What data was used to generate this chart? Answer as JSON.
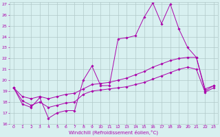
{
  "xlabel": "Windchill (Refroidissement éolien,°C)",
  "bg_color": "#d8f0f0",
  "line_color": "#aa00aa",
  "grid_color": "#b0c8c8",
  "xlim": [
    -0.5,
    23.5
  ],
  "ylim": [
    16,
    27.2
  ],
  "yticks": [
    16,
    17,
    18,
    19,
    20,
    21,
    22,
    23,
    24,
    25,
    26,
    27
  ],
  "xticks": [
    0,
    1,
    2,
    3,
    4,
    5,
    6,
    7,
    8,
    9,
    10,
    11,
    12,
    13,
    14,
    15,
    16,
    17,
    18,
    19,
    20,
    21,
    22,
    23
  ],
  "series": [
    {
      "x": [
        0,
        1,
        2,
        3,
        4,
        5,
        6,
        7,
        8,
        9,
        10,
        11,
        12,
        13,
        14,
        15,
        16,
        17,
        18,
        19,
        20,
        21,
        22,
        23
      ],
      "y": [
        19.3,
        17.8,
        17.5,
        18.4,
        16.5,
        17.0,
        17.2,
        17.2,
        20.0,
        21.3,
        19.5,
        19.5,
        23.8,
        23.9,
        24.1,
        25.8,
        27.1,
        25.2,
        27.0,
        24.7,
        23.0,
        22.1,
        19.0,
        19.5
      ]
    },
    {
      "x": [
        0,
        1,
        2,
        3,
        4,
        5,
        6,
        7,
        8,
        9,
        10,
        11,
        12,
        13,
        14,
        15,
        16,
        17,
        18,
        19,
        20,
        21,
        22,
        23
      ],
      "y": [
        19.3,
        18.5,
        18.3,
        18.5,
        18.3,
        18.5,
        18.7,
        18.8,
        19.2,
        19.6,
        19.7,
        19.8,
        20.0,
        20.2,
        20.5,
        20.8,
        21.2,
        21.5,
        21.8,
        22.0,
        22.1,
        22.1,
        19.2,
        19.5
      ]
    },
    {
      "x": [
        0,
        1,
        2,
        3,
        4,
        5,
        6,
        7,
        8,
        9,
        10,
        11,
        12,
        13,
        14,
        15,
        16,
        17,
        18,
        19,
        20,
        21,
        22,
        23
      ],
      "y": [
        19.3,
        18.1,
        17.7,
        18.0,
        17.5,
        17.7,
        17.9,
        18.0,
        18.7,
        19.0,
        19.1,
        19.2,
        19.3,
        19.4,
        19.6,
        19.8,
        20.1,
        20.4,
        20.7,
        21.0,
        21.2,
        21.0,
        18.9,
        19.3
      ]
    }
  ]
}
